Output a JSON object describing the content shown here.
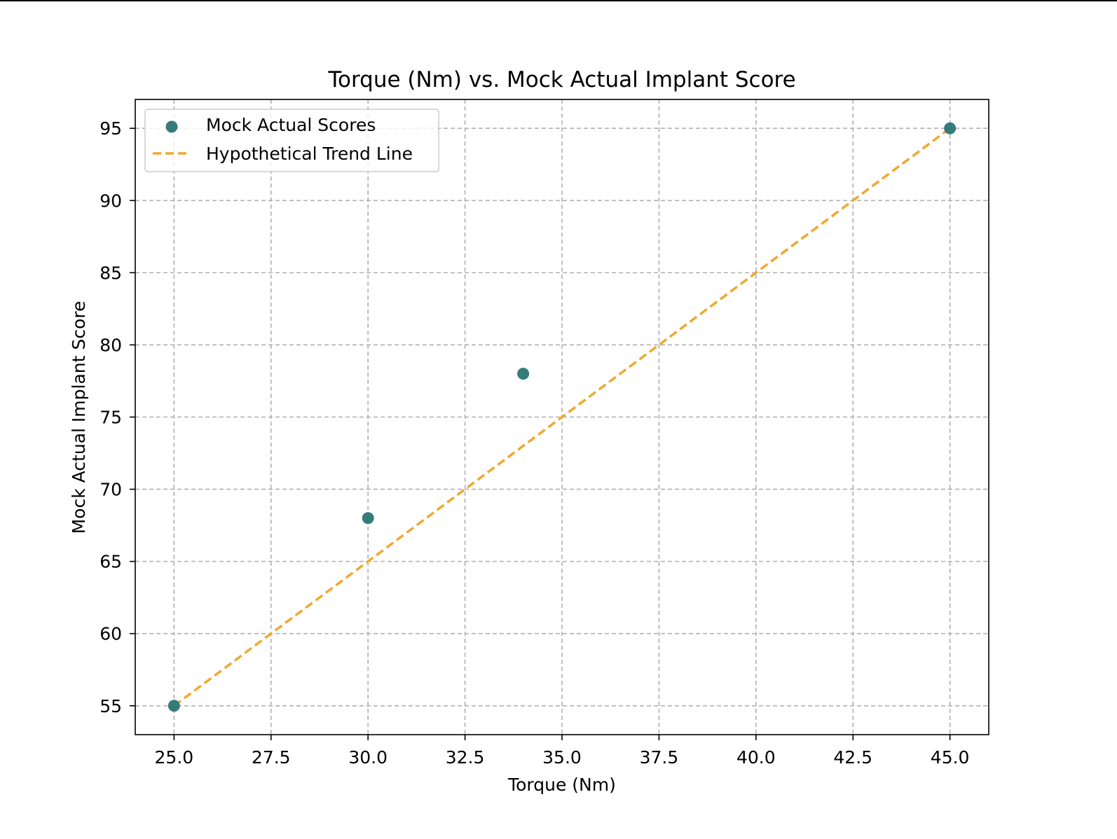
{
  "chart_data": {
    "type": "scatter",
    "title": "Torque (Nm) vs. Mock Actual Implant Score",
    "xlabel": "Torque (Nm)",
    "ylabel": "Mock Actual Implant Score",
    "xlim": [
      24.0,
      46.0
    ],
    "ylim": [
      53.0,
      97.0
    ],
    "x_ticks": [
      "25.0",
      "27.5",
      "30.0",
      "32.5",
      "35.0",
      "37.5",
      "40.0",
      "42.5",
      "45.0"
    ],
    "y_ticks": [
      "55",
      "60",
      "65",
      "70",
      "75",
      "80",
      "85",
      "90",
      "95"
    ],
    "grid": true,
    "legend_position": "upper-left",
    "series": [
      {
        "name": "Mock Actual Scores",
        "type": "scatter",
        "color": "#367b7a",
        "x": [
          25,
          30,
          34,
          45
        ],
        "y": [
          55,
          68,
          78,
          95
        ]
      },
      {
        "name": "Hypothetical Trend Line",
        "type": "line",
        "style": "dashed",
        "color": "#f0a830",
        "x": [
          25,
          45
        ],
        "y": [
          55,
          95
        ]
      }
    ]
  }
}
